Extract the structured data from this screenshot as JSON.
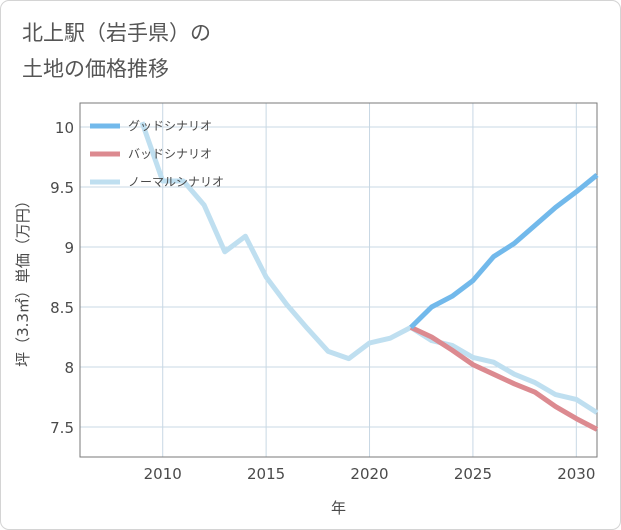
{
  "title_lines": [
    "北上駅（岩手県）の",
    "土地の価格推移"
  ],
  "chart_data": {
    "type": "line",
    "title": "北上駅（岩手県）の土地の価格推移",
    "xlabel": "年",
    "ylabel": "坪（3.3㎡）単価（万円）",
    "xlim": [
      2006,
      2031
    ],
    "ylim": [
      7.25,
      10.2
    ],
    "xticks": [
      2010,
      2015,
      2020,
      2025,
      2030
    ],
    "yticks": [
      7.5,
      8,
      8.5,
      9,
      9.5,
      10
    ],
    "ytick_labels": [
      "7.5",
      "8",
      "8.5",
      "9",
      "9.5",
      "10"
    ],
    "grid": true,
    "legend_position": "top-left",
    "series": [
      {
        "name": "グッドシナリオ",
        "color": "#72b9eb",
        "x": [
          2022,
          2023,
          2024,
          2025,
          2026,
          2027,
          2028,
          2029,
          2030,
          2031
        ],
        "y": [
          8.33,
          8.5,
          8.59,
          8.72,
          8.92,
          9.03,
          9.18,
          9.33,
          9.46,
          9.6
        ]
      },
      {
        "name": "バッドシナリオ",
        "color": "#dc8a90",
        "x": [
          2022,
          2023,
          2024,
          2025,
          2026,
          2027,
          2028,
          2029,
          2030,
          2031
        ],
        "y": [
          8.33,
          8.25,
          8.14,
          8.02,
          7.94,
          7.86,
          7.79,
          7.67,
          7.57,
          7.48
        ]
      },
      {
        "name": "ノーマルシナリオ",
        "color": "#bfdff0",
        "x": [
          2009,
          2010,
          2011,
          2012,
          2013,
          2014,
          2015,
          2016,
          2017,
          2018,
          2019,
          2020,
          2021,
          2022,
          2023,
          2024,
          2025,
          2026,
          2027,
          2028,
          2029,
          2030,
          2031
        ],
        "y": [
          10.04,
          9.55,
          9.55,
          9.35,
          8.96,
          9.09,
          8.75,
          8.52,
          8.32,
          8.13,
          8.07,
          8.2,
          8.24,
          8.33,
          8.22,
          8.18,
          8.08,
          8.04,
          7.94,
          7.87,
          7.77,
          7.73,
          7.62
        ]
      }
    ]
  }
}
